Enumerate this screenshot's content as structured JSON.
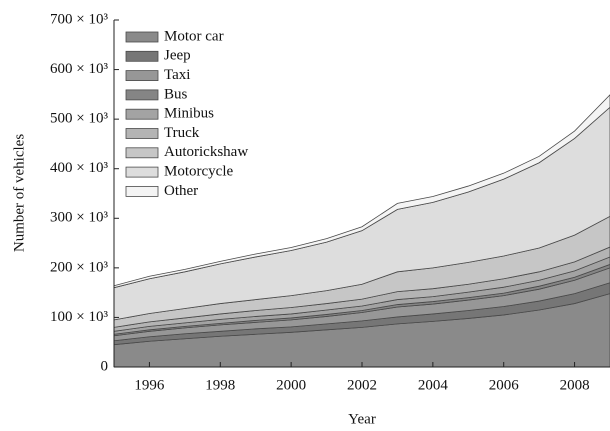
{
  "chart_data": {
    "type": "stacked-area",
    "x_label": "Year",
    "y_label": "Number of vehicles",
    "x": [
      1995,
      1996,
      1997,
      1998,
      1999,
      2000,
      2001,
      2002,
      2003,
      2004,
      2005,
      2006,
      2007,
      2008,
      2009
    ],
    "xlim": [
      1995,
      2009
    ],
    "xticks": [
      1996,
      1998,
      2000,
      2002,
      2004,
      2006,
      2008
    ],
    "ylim": [
      0,
      700000
    ],
    "yticks": [
      0,
      {
        "value": 100000,
        "label": "100 × 10³"
      },
      {
        "value": 200000,
        "label": "200 × 10³"
      },
      {
        "value": 300000,
        "label": "300 × 10³"
      },
      {
        "value": 400000,
        "label": "400 × 10³"
      },
      {
        "value": 500000,
        "label": "500 × 10³"
      },
      {
        "value": 600000,
        "label": "600 × 10³"
      },
      {
        "value": 700000,
        "label": "700 × 10³"
      }
    ],
    "legend_position": "upper left",
    "series": [
      {
        "name": "Motor car",
        "color": "#8a8a8a",
        "values": [
          45000,
          52000,
          57000,
          62000,
          66000,
          70000,
          75000,
          80000,
          87000,
          92000,
          98000,
          105000,
          115000,
          128000,
          148000
        ]
      },
      {
        "name": "Jeep",
        "color": "#767676",
        "values": [
          8000,
          9000,
          10000,
          10000,
          11000,
          11000,
          12000,
          13000,
          14000,
          15000,
          16000,
          17000,
          18000,
          20000,
          22000
        ]
      },
      {
        "name": "Taxi",
        "color": "#979797",
        "values": [
          10000,
          11000,
          12000,
          13000,
          13000,
          14000,
          15000,
          17000,
          20000,
          20000,
          21000,
          22000,
          24000,
          27000,
          30000
        ]
      },
      {
        "name": "Bus",
        "color": "#858585",
        "values": [
          3000,
          3000,
          3000,
          3000,
          4000,
          4000,
          4000,
          4000,
          5000,
          5000,
          5000,
          5000,
          6000,
          6000,
          7000
        ]
      },
      {
        "name": "Minibus",
        "color": "#a3a3a3",
        "values": [
          6000,
          7000,
          7000,
          8000,
          8000,
          8000,
          9000,
          9000,
          10000,
          10000,
          11000,
          12000,
          12000,
          13000,
          15000
        ]
      },
      {
        "name": "Truck",
        "color": "#b4b4b4",
        "values": [
          8000,
          9000,
          10000,
          11000,
          12000,
          13000,
          13000,
          14000,
          16000,
          16000,
          16000,
          17000,
          17000,
          18000,
          20000
        ]
      },
      {
        "name": "Autorickshaw",
        "color": "#c6c6c6",
        "values": [
          15000,
          17000,
          19000,
          21000,
          22000,
          24000,
          26000,
          30000,
          40000,
          42000,
          44000,
          46000,
          48000,
          54000,
          62000
        ]
      },
      {
        "name": "Motorcycle",
        "color": "#dddddd",
        "values": [
          65000,
          70000,
          74000,
          80000,
          86000,
          91000,
          98000,
          108000,
          126000,
          132000,
          142000,
          155000,
          172000,
          195000,
          220000
        ]
      },
      {
        "name": "Other",
        "color": "#f4f4f4",
        "values": [
          4000,
          5000,
          5000,
          5000,
          6000,
          6000,
          7000,
          8000,
          12000,
          12000,
          12000,
          12000,
          13000,
          15000,
          25000
        ]
      }
    ]
  }
}
